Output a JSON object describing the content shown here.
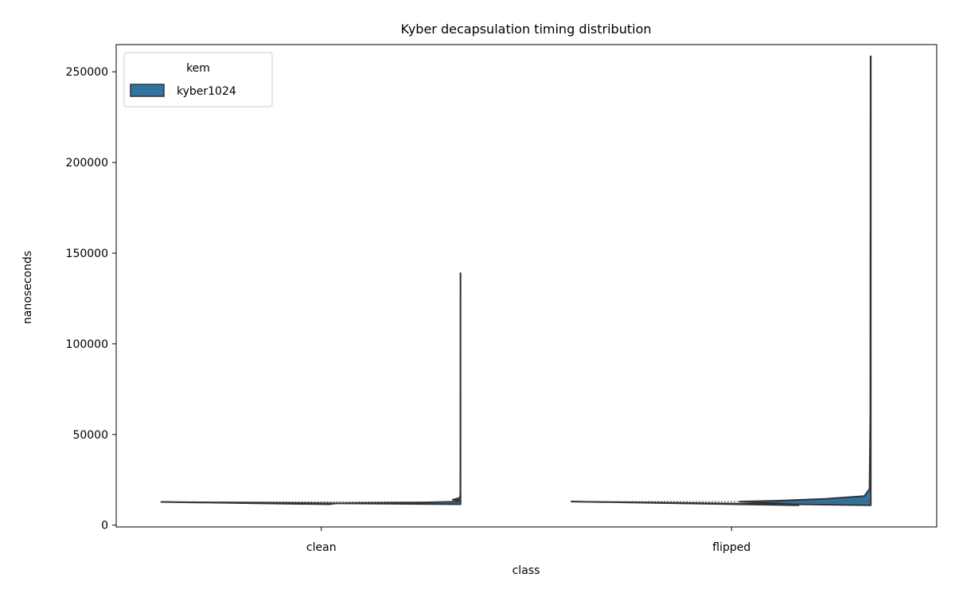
{
  "chart_data": {
    "type": "violin",
    "title": "Kyber decapsulation timing distribution",
    "xlabel": "class",
    "ylabel": "nanoseconds",
    "categories": [
      "clean",
      "flipped"
    ],
    "ylim": [
      -1000,
      265000
    ],
    "yticks": [
      0,
      50000,
      100000,
      150000,
      200000,
      250000
    ],
    "ytick_labels": [
      "0",
      "50000",
      "100000",
      "150000",
      "200000",
      "250000"
    ],
    "legend": {
      "title": "kem",
      "placement": "top-left",
      "entries": [
        {
          "label": "kyber1024",
          "color": "#3274a1"
        }
      ]
    },
    "series": [
      {
        "name": "kyber1024",
        "color": "#3274a1",
        "violins": [
          {
            "category": "clean",
            "min": 11500,
            "max": 139000,
            "median": 12800,
            "profile": [
              [
                11500,
                1.0
              ],
              [
                12000,
                0.95
              ],
              [
                12500,
                0.3
              ],
              [
                13000,
                0.02
              ],
              [
                13500,
                0.0
              ],
              [
                14000,
                0.06
              ],
              [
                15000,
                0.006
              ],
              [
                17000,
                0.002
              ],
              [
                30000,
                0.001
              ],
              [
                139000,
                0.0005
              ]
            ]
          },
          {
            "category": "flipped",
            "min": 11000,
            "max": 258500,
            "median": 13000,
            "profile": [
              [
                11000,
                0.55
              ],
              [
                11500,
                0.6
              ],
              [
                12000,
                0.7
              ],
              [
                13000,
                1.0
              ],
              [
                13500,
                0.7
              ],
              [
                14500,
                0.35
              ],
              [
                16000,
                0.05
              ],
              [
                20000,
                0.01
              ],
              [
                60000,
                0.004
              ],
              [
                258500,
                0.002
              ]
            ]
          }
        ]
      }
    ]
  }
}
